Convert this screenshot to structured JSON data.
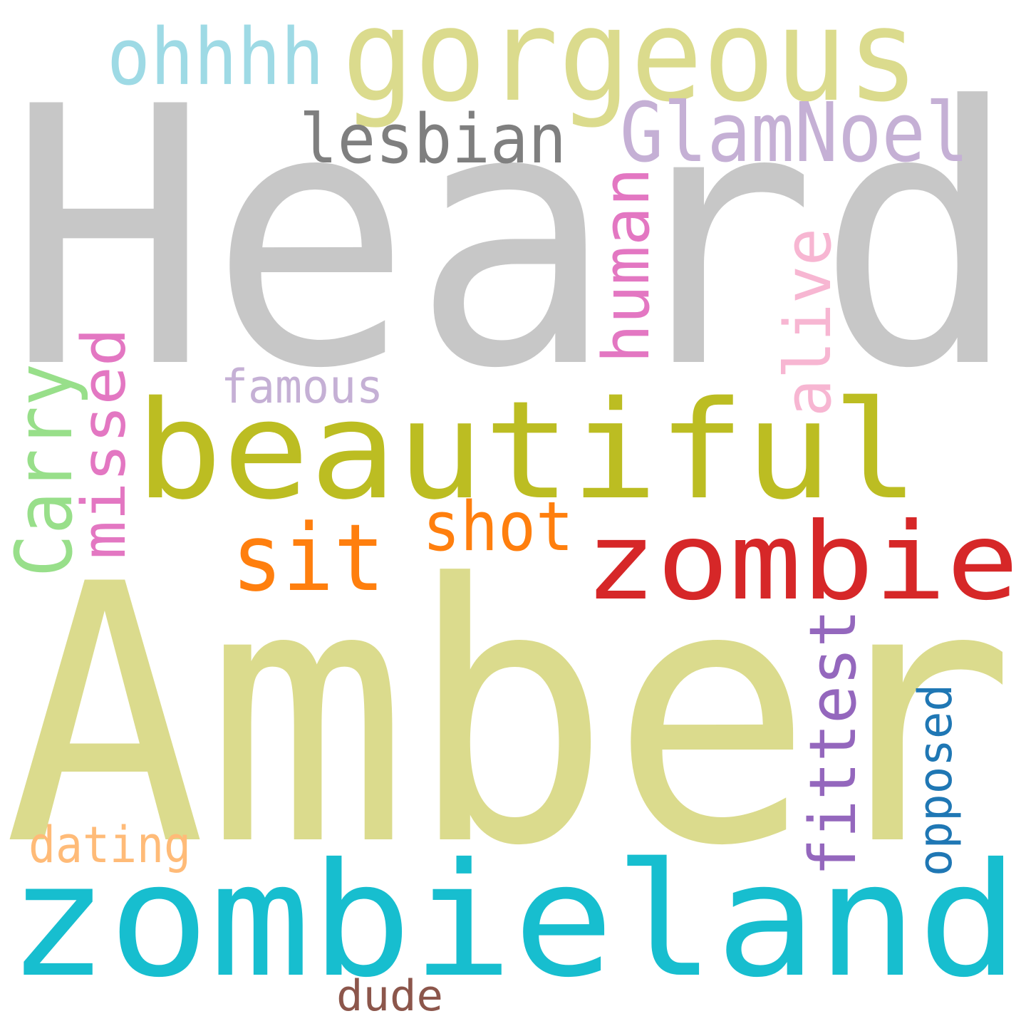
{
  "words": [
    {
      "text": "Heard",
      "color": "#c7c7c7",
      "vertical": false
    },
    {
      "text": "Amber",
      "color": "#dbdb8d",
      "vertical": false
    },
    {
      "text": "zombieland",
      "color": "#17becf",
      "vertical": false
    },
    {
      "text": "beautiful",
      "color": "#bcbd22",
      "vertical": false
    },
    {
      "text": "gorgeous",
      "color": "#dbdb8d",
      "vertical": false
    },
    {
      "text": "zombie",
      "color": "#d62728",
      "vertical": false
    },
    {
      "text": "GlamNoel",
      "color": "#c5b0d5",
      "vertical": false
    },
    {
      "text": "ohhhh",
      "color": "#9edae5",
      "vertical": false
    },
    {
      "text": "lesbian",
      "color": "#7f7f7f",
      "vertical": false
    },
    {
      "text": "sit",
      "color": "#ff7f0e",
      "vertical": false
    },
    {
      "text": "shot",
      "color": "#ff7f0e",
      "vertical": false
    },
    {
      "text": "human",
      "color": "#e377c2",
      "vertical": true
    },
    {
      "text": "alive",
      "color": "#f7b6d2",
      "vertical": true
    },
    {
      "text": "missed",
      "color": "#e377c2",
      "vertical": true
    },
    {
      "text": "Carry",
      "color": "#98df8a",
      "vertical": true
    },
    {
      "text": "famous",
      "color": "#c5b0d5",
      "vertical": false
    },
    {
      "text": "fittest",
      "color": "#9467bd",
      "vertical": true
    },
    {
      "text": "opposed",
      "color": "#1f77b4",
      "vertical": true
    },
    {
      "text": "dating",
      "color": "#ffbb78",
      "vertical": false
    },
    {
      "text": "dude",
      "color": "#8c564b",
      "vertical": false
    }
  ]
}
